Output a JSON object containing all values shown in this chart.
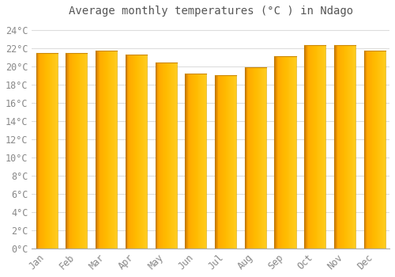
{
  "title": "Average monthly temperatures (°C ) in Ndago",
  "months": [
    "Jan",
    "Feb",
    "Mar",
    "Apr",
    "May",
    "Jun",
    "Jul",
    "Aug",
    "Sep",
    "Oct",
    "Nov",
    "Dec"
  ],
  "values": [
    21.5,
    21.5,
    21.7,
    21.3,
    20.4,
    19.2,
    19.0,
    19.9,
    21.1,
    22.3,
    22.3,
    21.7
  ],
  "bar_color_left": "#E07800",
  "bar_color_mid": "#FFB300",
  "bar_color_right": "#FFD050",
  "bar_edge_color": "#CC8800",
  "background_color": "#FFFFFF",
  "plot_bg_color": "#FFFFFF",
  "grid_color": "#DDDDDD",
  "text_color": "#888888",
  "title_color": "#555555",
  "ylim": [
    0,
    25
  ],
  "ytick_step": 2,
  "title_fontsize": 10,
  "tick_fontsize": 8.5
}
